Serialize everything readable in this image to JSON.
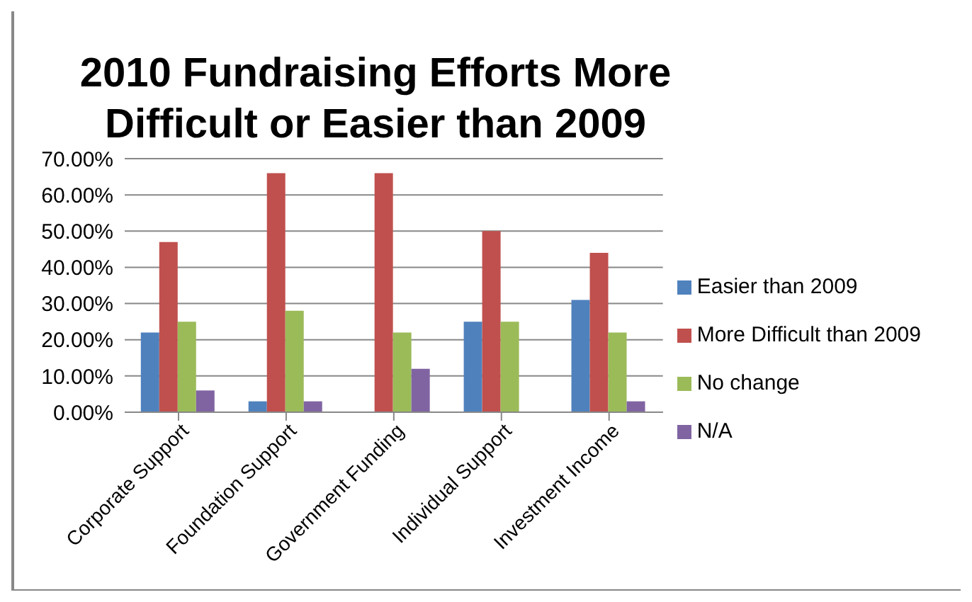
{
  "chart_data": {
    "type": "bar",
    "title": "2010 Fundraising Efforts More Difficult or Easier than 2009",
    "categories": [
      "Corporate Support",
      "Foundation Support",
      "Government Funding",
      "Individual Support",
      "Investment Income"
    ],
    "series": [
      {
        "name": "Easier than 2009",
        "color": "#4f81bd",
        "values": [
          22,
          3,
          0,
          25,
          31
        ]
      },
      {
        "name": "More Difficult than 2009",
        "color": "#c0504d",
        "values": [
          47,
          66,
          66,
          50,
          44
        ]
      },
      {
        "name": "No change",
        "color": "#9bbb59",
        "values": [
          25,
          28,
          22,
          25,
          22
        ]
      },
      {
        "name": "N/A",
        "color": "#8064a2",
        "values": [
          6,
          3,
          12,
          0,
          3
        ]
      }
    ],
    "ylim": [
      0,
      70
    ],
    "yticks": [
      {
        "value": 0,
        "label": "0.00%"
      },
      {
        "value": 10,
        "label": "10.00%"
      },
      {
        "value": 20,
        "label": "20.00%"
      },
      {
        "value": 30,
        "label": "30.00%"
      },
      {
        "value": 40,
        "label": "40.00%"
      },
      {
        "value": 50,
        "label": "50.00%"
      },
      {
        "value": 60,
        "label": "60.00%"
      },
      {
        "value": 70,
        "label": "70.00%"
      }
    ],
    "grid": "y",
    "legend": "right"
  }
}
